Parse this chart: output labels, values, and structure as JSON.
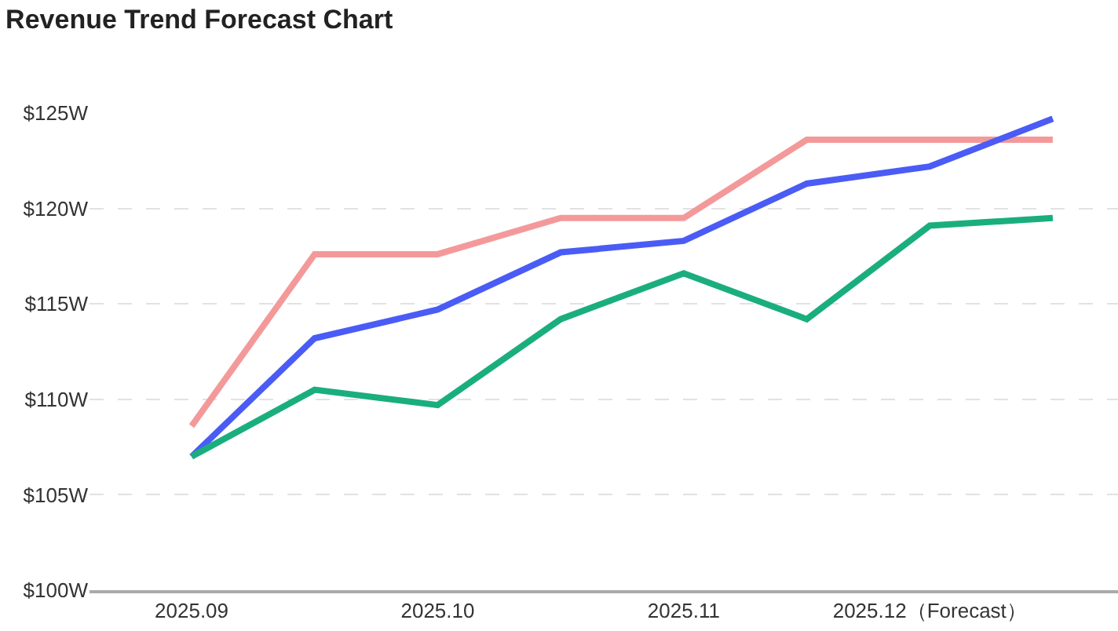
{
  "chart_data": {
    "type": "line",
    "title": "Revenue Trend Forecast Chart",
    "categories": [
      "2025.09",
      null,
      "2025.10",
      null,
      "2025.11",
      null,
      "2025.12（Forecast）",
      null
    ],
    "series": [
      {
        "color": "#f4999a",
        "values": [
          108.6,
          117.6,
          117.6,
          119.5,
          119.5,
          123.6,
          123.6,
          123.6
        ]
      },
      {
        "color": "#4a5cf5",
        "values": [
          107.0,
          113.2,
          114.7,
          117.7,
          118.3,
          121.3,
          122.2,
          124.7
        ]
      },
      {
        "color": "#1aae7e",
        "values": [
          107.0,
          110.5,
          109.7,
          114.2,
          116.6,
          114.2,
          119.1,
          119.5
        ]
      }
    ],
    "ylim": [
      100,
      125
    ],
    "yticks": [
      {
        "value": 100,
        "label": "$100W"
      },
      {
        "value": 105,
        "label": "$105W"
      },
      {
        "value": 110,
        "label": "$110W"
      },
      {
        "value": 115,
        "label": "$115W"
      },
      {
        "value": 120,
        "label": "$120W"
      },
      {
        "value": 125,
        "label": "$125W"
      }
    ],
    "grid": "y",
    "line_style": "solid"
  }
}
